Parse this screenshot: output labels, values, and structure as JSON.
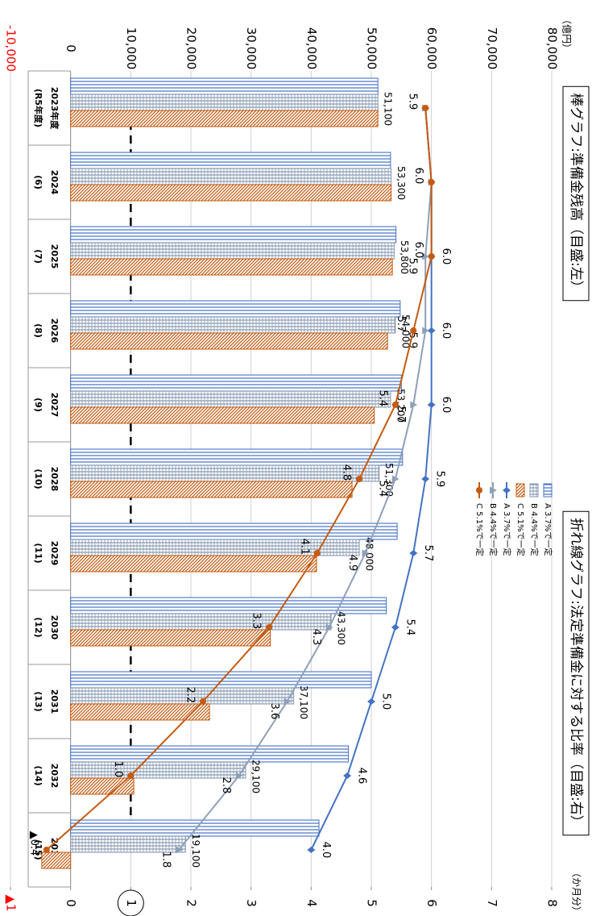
{
  "chart_data": {
    "type": "bar-line",
    "title": "棒グラフ:準備金残高（目盛:左）",
    "subtitle": "折れ線グラフ:法定準備金に対する比率（目盛:右）",
    "y_unit": "（億円）",
    "y2_unit": "（か月分）",
    "categories": [
      "2023年度",
      "2024",
      "2025",
      "2026",
      "2027",
      "2028",
      "2029",
      "2030",
      "2031",
      "2032",
      "2033"
    ],
    "category_sublabels": [
      "(R5年度)",
      "(6)",
      "(7)",
      "(8)",
      "(9)",
      "(10)",
      "(11)",
      "(12)",
      "(13)",
      "(14)",
      "(15)"
    ],
    "ylim": [
      -10000,
      80000
    ],
    "yticks": [
      {
        "value": -10000,
        "label": "-10,000"
      },
      0,
      {
        "value": 10000,
        "label": "10,000"
      },
      {
        "value": 20000,
        "label": "20,000"
      },
      {
        "value": 30000,
        "label": "30,000"
      },
      {
        "value": 40000,
        "label": "40,000"
      },
      {
        "value": 50000,
        "label": "50,000"
      },
      {
        "value": 60000,
        "label": "60,000"
      },
      {
        "value": 70000,
        "label": "70,000"
      },
      {
        "value": 80000,
        "label": "80,000"
      }
    ],
    "y2lim": [
      -1,
      8
    ],
    "y2ticks": [
      {
        "value": -1,
        "label": "▲1"
      },
      0,
      1,
      2,
      3,
      4,
      5,
      6,
      7,
      8
    ],
    "negative_label_color": "#ff0000",
    "grid": true,
    "reference_line": 10000,
    "series": [
      {
        "name": "A 3.7%で一定",
        "type": "bar",
        "color": "#4472c4",
        "pattern": "vertical",
        "values": [
          51100,
          53200,
          54100,
          54800,
          55000,
          55200,
          54300,
          52500,
          50000,
          46200,
          41300
        ]
      },
      {
        "name": "B 4.4%で一定",
        "type": "bar",
        "color": "#8497b0",
        "pattern": "cross",
        "values": [
          51100,
          53300,
          53800,
          54000,
          53200,
          51300,
          48000,
          43300,
          37100,
          29100,
          19100
        ],
        "value_labels": [
          "51,100",
          "53,300",
          "53,800",
          "54,000",
          "53,200",
          "51,300",
          "48,000",
          "43,300",
          "37,100",
          "29,100",
          "19,100"
        ]
      },
      {
        "name": "C 5.1%で一定",
        "type": "bar",
        "color": "#c55a11",
        "pattern": "diagonal",
        "values": [
          51100,
          53300,
          53500,
          52700,
          50500,
          46800,
          40900,
          33200,
          23100,
          10500,
          -4800
        ]
      },
      {
        "name": "A 3.7%で一定",
        "type": "line",
        "axis": "y2",
        "color": "#4472c4",
        "marker": "diamond",
        "values": [
          5.9,
          6.0,
          6.0,
          6.0,
          6.0,
          5.9,
          5.7,
          5.4,
          5.0,
          4.6,
          4.0
        ],
        "value_labels": [
          null,
          null,
          "6.0",
          "6.0",
          "6.0",
          "5.9",
          "5.7",
          "5.4",
          "5.0",
          "4.6",
          "4.0"
        ]
      },
      {
        "name": "B 4.4%で一定",
        "type": "line",
        "axis": "y2",
        "color": "#8ea0b8",
        "marker": "triangle",
        "values": [
          5.9,
          6.0,
          5.9,
          5.9,
          5.7,
          5.4,
          4.9,
          4.3,
          3.6,
          2.8,
          1.8
        ],
        "value_labels": [
          null,
          null,
          "5.9",
          "5.9",
          "5.7",
          "5.4",
          "4.9",
          "4.3",
          "3.6",
          "2.8",
          "1.8"
        ]
      },
      {
        "name": "C 5.1%で一定",
        "type": "line",
        "axis": "y2",
        "color": "#c55a11",
        "marker": "circle",
        "values": [
          5.9,
          6.0,
          6.0,
          5.7,
          5.4,
          4.8,
          4.1,
          3.3,
          2.2,
          1.0,
          -0.4
        ],
        "value_labels": [
          "5.9",
          "6.0",
          "6.0",
          "5.7",
          "5.4",
          "4.8",
          "4.1",
          "3.3",
          "2.2",
          "1.0",
          "▲0.4"
        ]
      }
    ]
  }
}
